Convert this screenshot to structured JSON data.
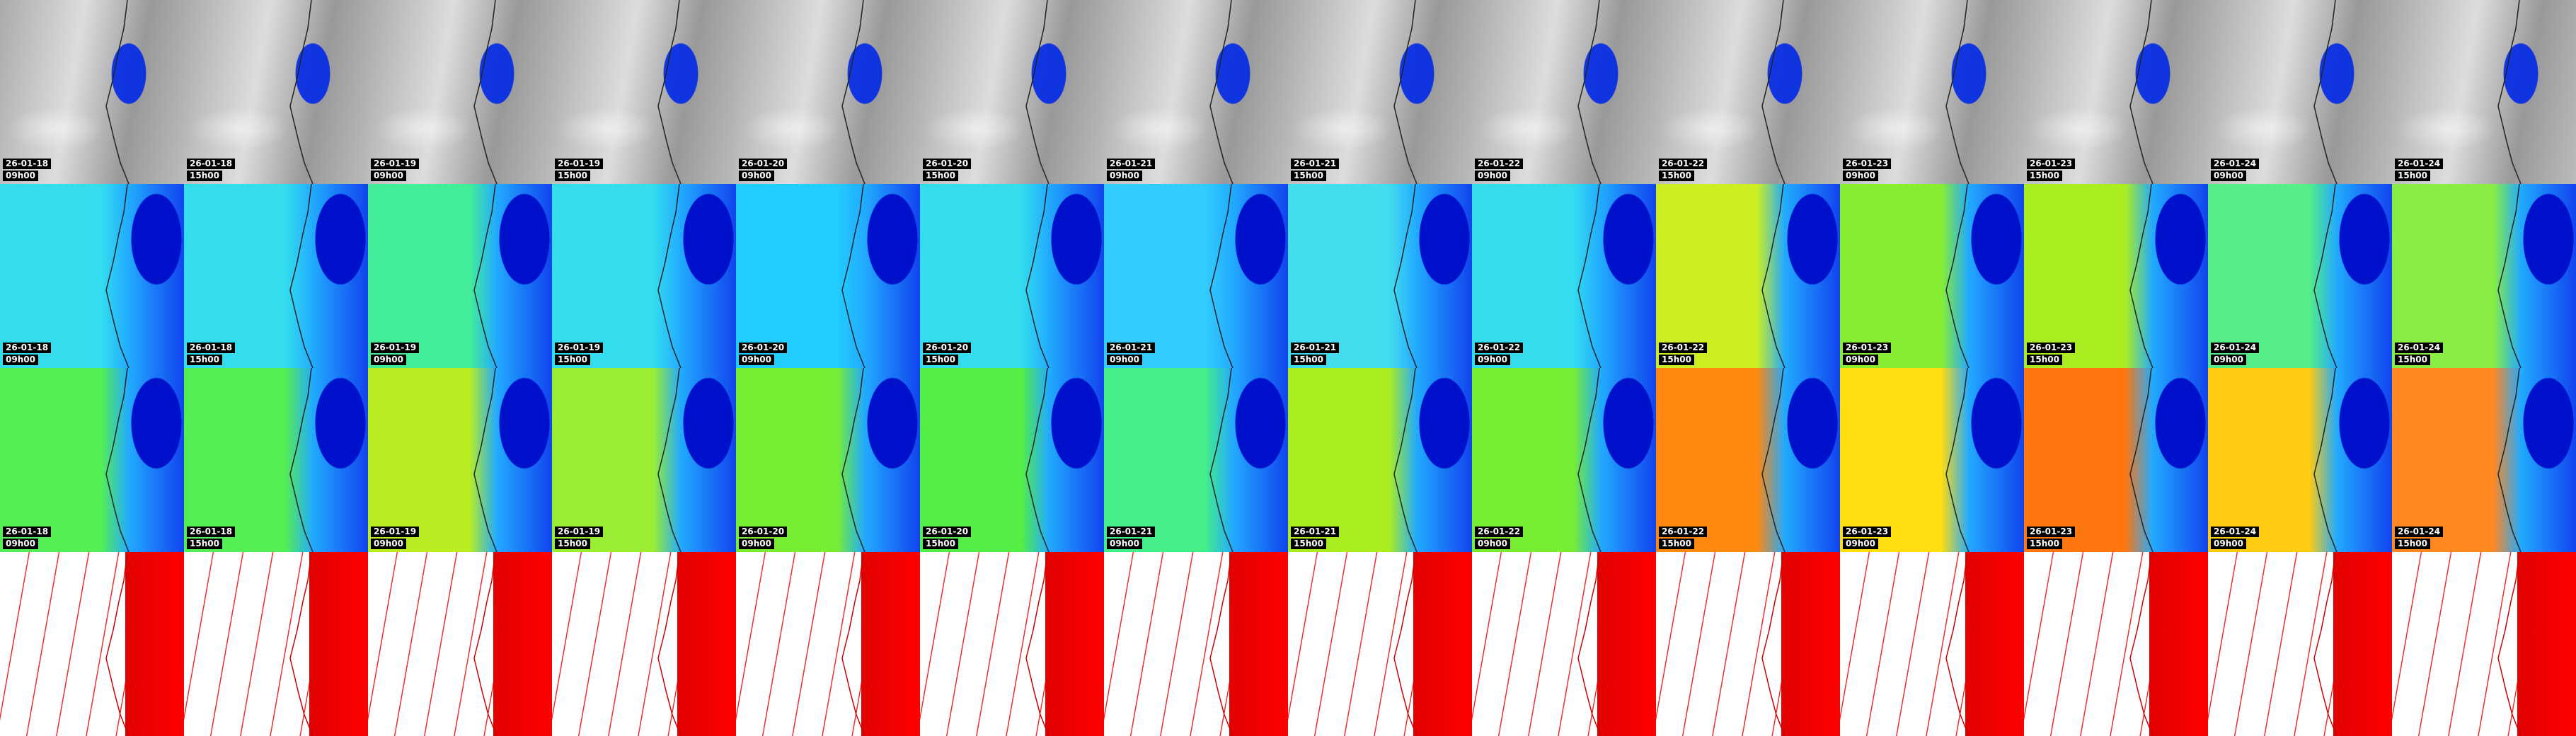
{
  "columns": [
    {
      "date": "26-01-18",
      "time": "09h00"
    },
    {
      "date": "26-01-18",
      "time": "15h00"
    },
    {
      "date": "26-01-19",
      "time": "09h00"
    },
    {
      "date": "26-01-19",
      "time": "15h00"
    },
    {
      "date": "26-01-20",
      "time": "09h00"
    },
    {
      "date": "26-01-20",
      "time": "15h00"
    },
    {
      "date": "26-01-21",
      "time": "09h00"
    },
    {
      "date": "26-01-21",
      "time": "15h00"
    },
    {
      "date": "26-01-22",
      "time": "09h00"
    },
    {
      "date": "26-01-22",
      "time": "15h00"
    },
    {
      "date": "26-01-23",
      "time": "09h00"
    },
    {
      "date": "26-01-23",
      "time": "15h00"
    },
    {
      "date": "26-01-24",
      "time": "09h00"
    },
    {
      "date": "26-01-24",
      "time": "15h00"
    }
  ]
}
